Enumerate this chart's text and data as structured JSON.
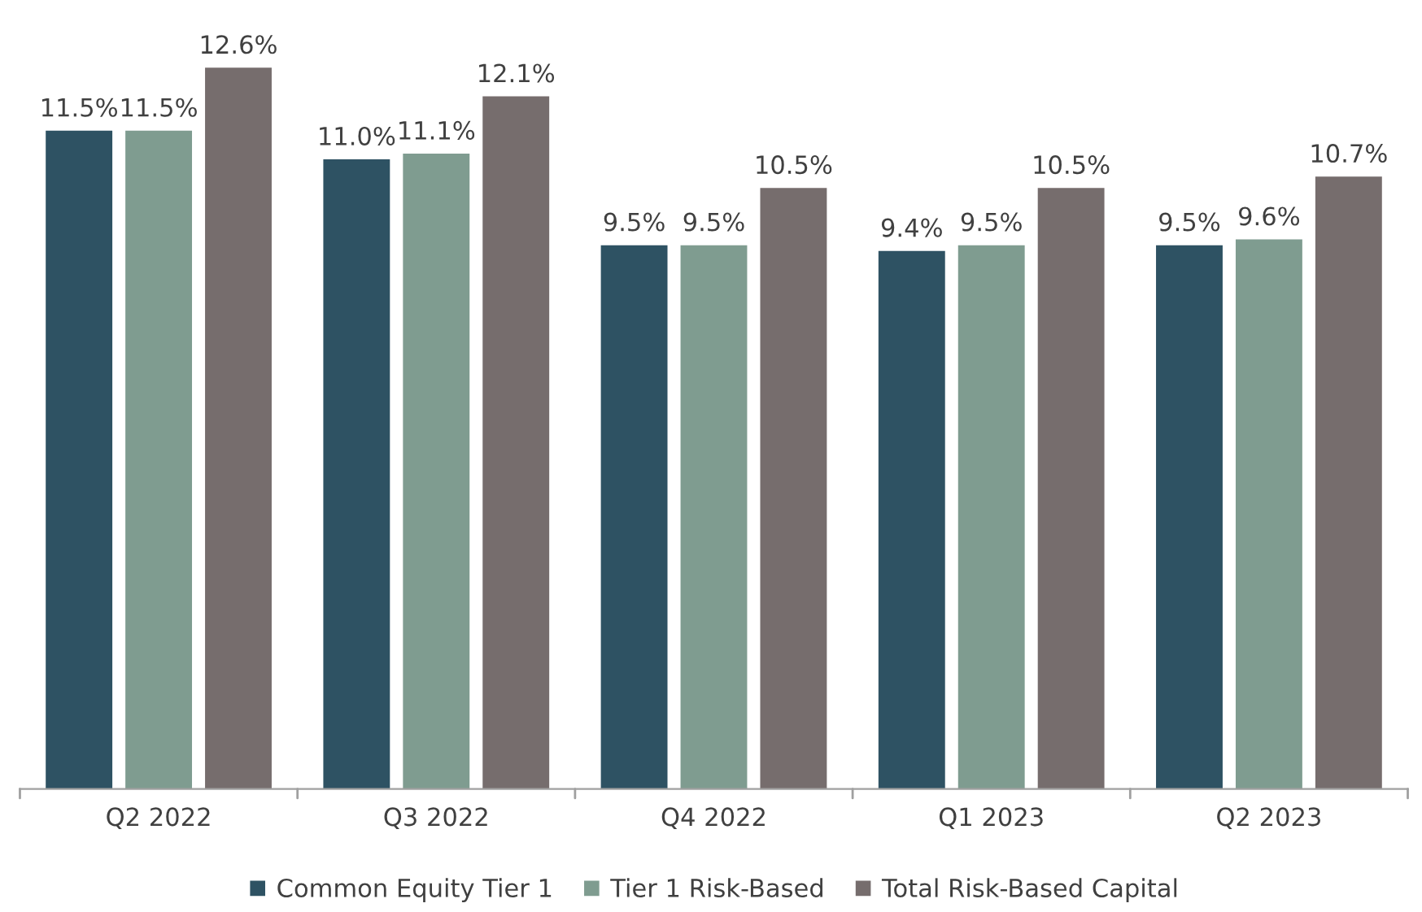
{
  "chart_data": {
    "type": "bar",
    "categories": [
      "Q2 2022",
      "Q3 2022",
      "Q4 2022",
      "Q1 2023",
      "Q2 2023"
    ],
    "series": [
      {
        "name": "Common Equity Tier 1",
        "color": "#2e5263",
        "values": [
          11.5,
          11.0,
          9.5,
          9.4,
          9.5
        ],
        "value_labels": [
          "11.5%",
          "11.0%",
          "9.5%",
          "9.4%",
          "9.5%"
        ]
      },
      {
        "name": "Tier 1 Risk-Based",
        "color": "#7f9c90",
        "values": [
          11.5,
          11.1,
          9.5,
          9.5,
          9.6
        ],
        "value_labels": [
          "11.5%",
          "11.1%",
          "9.5%",
          "9.5%",
          "9.6%"
        ]
      },
      {
        "name": "Total Risk-Based Capital",
        "color": "#766d6d",
        "values": [
          12.6,
          12.1,
          10.5,
          10.5,
          10.7
        ],
        "value_labels": [
          "12.6%",
          "12.1%",
          "10.5%",
          "10.5%",
          "10.7%"
        ]
      }
    ],
    "legend": "bottom"
  }
}
